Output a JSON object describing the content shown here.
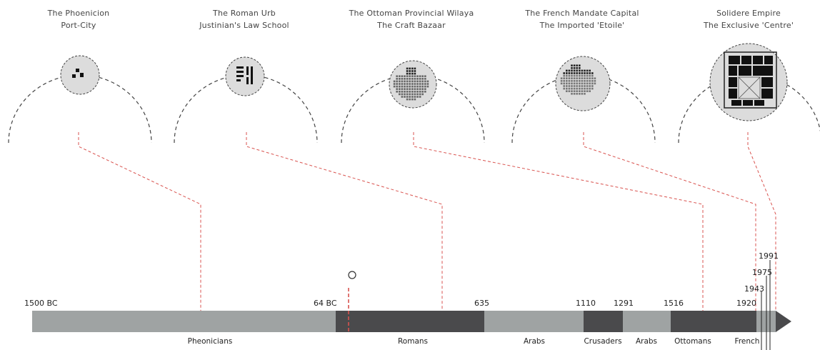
{
  "eras": [
    {
      "line1": "The Phoenicion",
      "line2": "Port-City"
    },
    {
      "line1": "The Roman Urb",
      "line2": "Justinian's Law School"
    },
    {
      "line1": "The Ottoman Provincial Wilaya",
      "line2": "The Craft Bazaar"
    },
    {
      "line1": "The French Mandate Capital",
      "line2": "The Imported 'Etoile'"
    },
    {
      "line1": "Solidere Empire",
      "line2": "The Exclusive 'Centre'"
    }
  ],
  "timeline": {
    "start_label": "1500 BC",
    "marks": [
      {
        "label": "64 BC"
      },
      {
        "label": "635"
      },
      {
        "label": "1110"
      },
      {
        "label": "1291"
      },
      {
        "label": "1516"
      },
      {
        "label": "1920"
      },
      {
        "label": "1943"
      },
      {
        "label": "1975"
      },
      {
        "label": "1991"
      }
    ],
    "periods": [
      {
        "label": "Pheonicians",
        "color": "#9fa3a3"
      },
      {
        "label": "Romans",
        "color": "#4a4a4c"
      },
      {
        "label": "Arabs",
        "color": "#9fa3a3"
      },
      {
        "label": "Crusaders",
        "color": "#4a4a4c"
      },
      {
        "label": "Arabs",
        "color": "#9fa3a3"
      },
      {
        "label": "Ottomans",
        "color": "#4a4a4c"
      },
      {
        "label": "French",
        "color": "#9fa3a3"
      }
    ],
    "accent_color": "#d9534f"
  }
}
